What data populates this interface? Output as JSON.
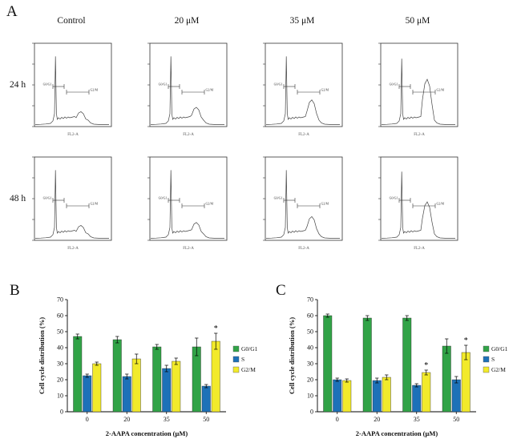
{
  "panel_a": {
    "label": "A",
    "columns": [
      "Control",
      "20 μM",
      "35 μM",
      "50 μM"
    ],
    "rows": [
      "24 h",
      "48 h"
    ],
    "gate_labels": {
      "left": "G0/G1",
      "right": "G2/M"
    },
    "x_axis_label": "FL2-A",
    "histograms": [
      {
        "row": "24 h",
        "col": "Control",
        "g1_peak": 0.93,
        "g2_peak": 0.18
      },
      {
        "row": "24 h",
        "col": "20 μM",
        "g1_peak": 0.93,
        "g2_peak": 0.24
      },
      {
        "row": "24 h",
        "col": "35 μM",
        "g1_peak": 0.93,
        "g2_peak": 0.34
      },
      {
        "row": "24 h",
        "col": "50 μM",
        "g1_peak": 0.9,
        "g2_peak": 0.62
      },
      {
        "row": "48 h",
        "col": "Control",
        "g1_peak": 0.93,
        "g2_peak": 0.18
      },
      {
        "row": "48 h",
        "col": "20 μM",
        "g1_peak": 0.93,
        "g2_peak": 0.22
      },
      {
        "row": "48 h",
        "col": "35 μM",
        "g1_peak": 0.93,
        "g2_peak": 0.3
      },
      {
        "row": "48 h",
        "col": "50 μM",
        "g1_peak": 0.91,
        "g2_peak": 0.5
      }
    ]
  },
  "panel_b": {
    "label": "B"
  },
  "panel_c": {
    "label": "C"
  },
  "colors": {
    "g0g1": "#31a347",
    "s": "#1d71b8",
    "g2m": "#f2ea2b"
  },
  "chart_data": [
    {
      "type": "bar",
      "panel": "B",
      "title": "",
      "categories": [
        "0",
        "20",
        "35",
        "50"
      ],
      "series": [
        {
          "name": "G0/G1",
          "color": "#31a347",
          "values": [
            47,
            45,
            40.5,
            40.5
          ],
          "errors": [
            1.5,
            2,
            1.5,
            5.5
          ],
          "sig": [
            "",
            "",
            "",
            ""
          ]
        },
        {
          "name": "S",
          "color": "#1d71b8",
          "values": [
            22.5,
            22,
            27,
            16
          ],
          "errors": [
            1,
            1.5,
            2,
            1
          ],
          "sig": [
            "",
            "",
            "",
            ""
          ]
        },
        {
          "name": "G2/M",
          "color": "#f2ea2b",
          "values": [
            30,
            33,
            31.5,
            44
          ],
          "errors": [
            1,
            3,
            2,
            5
          ],
          "sig": [
            "",
            "",
            "",
            "*"
          ]
        }
      ],
      "xlabel": "2-AAPA concentration (μM)",
      "ylabel": "Cell cycle distribution (%)",
      "ylim": [
        0,
        70
      ],
      "yticks": [
        0,
        10,
        20,
        30,
        40,
        50,
        60,
        70
      ],
      "legend": [
        "G0/G1",
        "S",
        "G2/M"
      ],
      "legend_position": "right",
      "grid": false
    },
    {
      "type": "bar",
      "panel": "C",
      "title": "",
      "categories": [
        "0",
        "20",
        "35",
        "50"
      ],
      "series": [
        {
          "name": "G0/G1",
          "color": "#31a347",
          "values": [
            60,
            58.5,
            58.5,
            41
          ],
          "errors": [
            1,
            1.5,
            1.5,
            4.5
          ],
          "sig": [
            "",
            "",
            "",
            ""
          ]
        },
        {
          "name": "S",
          "color": "#1d71b8",
          "values": [
            20,
            19.5,
            16.5,
            20
          ],
          "errors": [
            1,
            1.5,
            1,
            2
          ],
          "sig": [
            "",
            "",
            "",
            ""
          ]
        },
        {
          "name": "G2/M",
          "color": "#f2ea2b",
          "values": [
            19.5,
            21.5,
            24.5,
            37
          ],
          "errors": [
            1,
            1.5,
            1.5,
            4.5
          ],
          "sig": [
            "",
            "",
            "*",
            "*"
          ]
        }
      ],
      "xlabel": "2-AAPA concentration (μM)",
      "ylabel": "Cell cycle distribution (%)",
      "ylim": [
        0,
        70
      ],
      "yticks": [
        0,
        10,
        20,
        30,
        40,
        50,
        60,
        70
      ],
      "legend": [
        "G0/G1",
        "S",
        "G2/M"
      ],
      "legend_position": "right",
      "grid": false
    }
  ]
}
